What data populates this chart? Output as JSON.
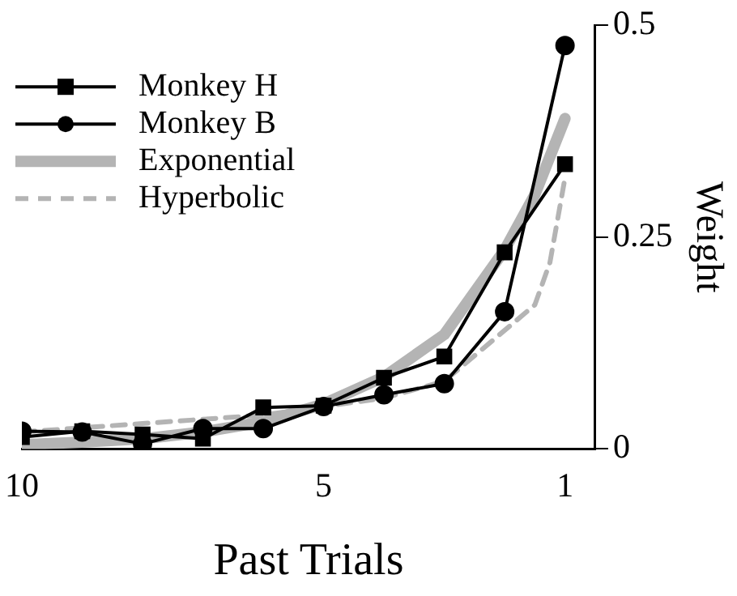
{
  "chart_data": {
    "type": "line",
    "xlabel": "Past Trials",
    "ylabel": "Weight",
    "xlim": [
      10,
      0.5
    ],
    "xticks": [
      10,
      5,
      1
    ],
    "ylim": [
      0,
      0.5
    ],
    "yticks": [
      0,
      0.25,
      0.5
    ],
    "grid": false,
    "legend": "top left",
    "series": [
      {
        "name": "Monkey H",
        "color": "#000000",
        "marker": "square",
        "line_style": "solid",
        "x": [
          10,
          9,
          8,
          7,
          6,
          5,
          4,
          3,
          2,
          1
        ],
        "values": [
          0.014,
          0.021,
          0.017,
          0.012,
          0.049,
          0.051,
          0.084,
          0.109,
          0.232,
          0.336
        ]
      },
      {
        "name": "Monkey B",
        "color": "#000000",
        "marker": "circle",
        "line_style": "solid",
        "x": [
          10,
          9,
          8,
          7,
          6,
          5,
          4,
          3,
          2,
          1
        ],
        "values": [
          0.021,
          0.02,
          0.006,
          0.024,
          0.024,
          0.05,
          0.064,
          0.077,
          0.162,
          0.476
        ]
      },
      {
        "name": "Exponential",
        "color": "#b4b4b4",
        "marker": "none",
        "line_style": "solid",
        "x": [
          10,
          9,
          8,
          7,
          6,
          5,
          4,
          3,
          2,
          1.5,
          1
        ],
        "values": [
          0.005,
          0.008,
          0.012,
          0.02,
          0.032,
          0.053,
          0.085,
          0.135,
          0.235,
          0.3,
          0.39
        ]
      },
      {
        "name": "Hyperbolic",
        "color": "#b4b4b4",
        "marker": "none",
        "line_style": "dashed",
        "x": [
          10,
          8,
          6,
          5,
          4,
          3,
          2,
          1.5,
          1.25,
          1
        ],
        "values": [
          0.02,
          0.03,
          0.04,
          0.05,
          0.06,
          0.08,
          0.14,
          0.17,
          0.22,
          0.32
        ]
      }
    ]
  }
}
